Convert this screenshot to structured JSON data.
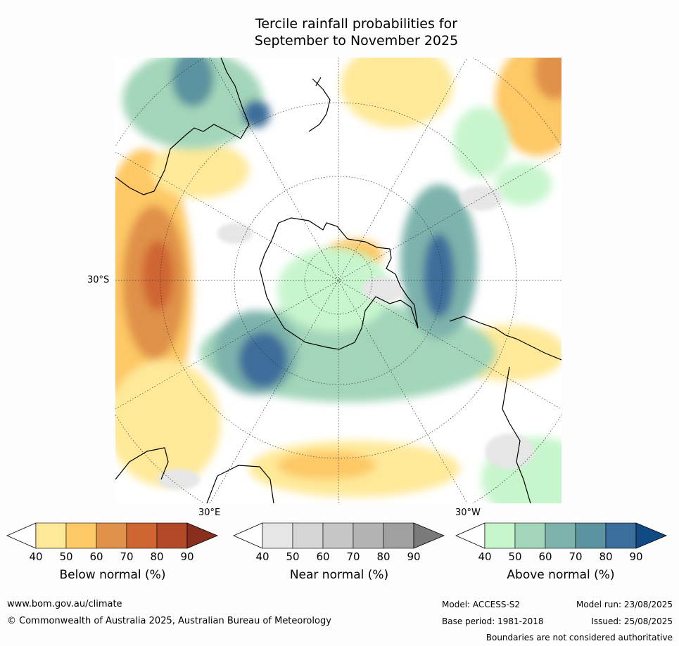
{
  "title": {
    "line1": "Tercile rainfall probabilities for",
    "line2": "September to November 2025"
  },
  "map": {
    "projection": "south-polar-stereographic",
    "lat_label": "30°S",
    "lon_labels": [
      "30°E",
      "30°W"
    ],
    "features": [
      "Antarctica",
      "Australia",
      "New Zealand",
      "South America",
      "Africa"
    ]
  },
  "colorbars": [
    {
      "label": "Below normal (%)",
      "ticks": [
        "40",
        "50",
        "60",
        "70",
        "80",
        "90"
      ],
      "colors": [
        "#ffffff",
        "#fee999",
        "#fdc865",
        "#e0914a",
        "#cf6530",
        "#b24a28",
        "#8a2f1d"
      ]
    },
    {
      "label": "Near normal (%)",
      "ticks": [
        "40",
        "50",
        "60",
        "70",
        "80",
        "90"
      ],
      "colors": [
        "#ffffff",
        "#e6e6e6",
        "#d6d6d6",
        "#c6c6c6",
        "#b3b3b3",
        "#a0a0a0",
        "#7a7a7a"
      ]
    },
    {
      "label": "Above normal (%)",
      "ticks": [
        "40",
        "50",
        "60",
        "70",
        "80",
        "90"
      ],
      "colors": [
        "#ffffff",
        "#c7f5cc",
        "#a3d6b9",
        "#7db3ac",
        "#5b93a0",
        "#3c6e9b",
        "#124b84"
      ]
    }
  ],
  "footer": {
    "url": "www.bom.gov.au/climate",
    "copyright": "© Commonwealth of Australia 2025, Australian Bureau of Meteorology",
    "model": "Model: ACCESS-S2",
    "model_run": "Model run: 23/08/2025",
    "base_period": "Base period: 1981-2018",
    "issued": "Issued: 25/08/2025",
    "disclaimer": "Boundaries are not considered authoritative"
  }
}
